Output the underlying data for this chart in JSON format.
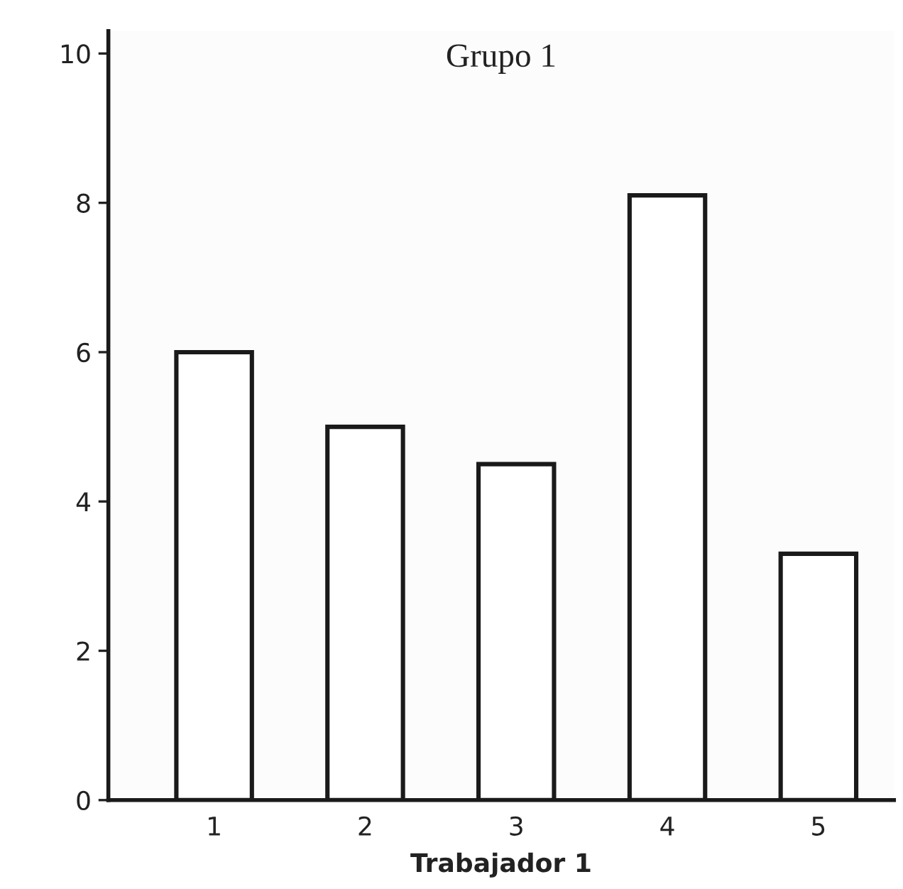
{
  "chart_data": {
    "type": "bar",
    "title": "Grupo 1",
    "xlabel": "Trabajador 1",
    "categories": [
      "1",
      "2",
      "3",
      "4",
      "5"
    ],
    "values": [
      6.0,
      5.0,
      4.5,
      8.1,
      3.3
    ],
    "color": "#ffffff",
    "ylim": [
      0,
      10.3
    ],
    "yticks": [
      0,
      2,
      4,
      6,
      8,
      10
    ],
    "grid": false,
    "legend": false
  }
}
